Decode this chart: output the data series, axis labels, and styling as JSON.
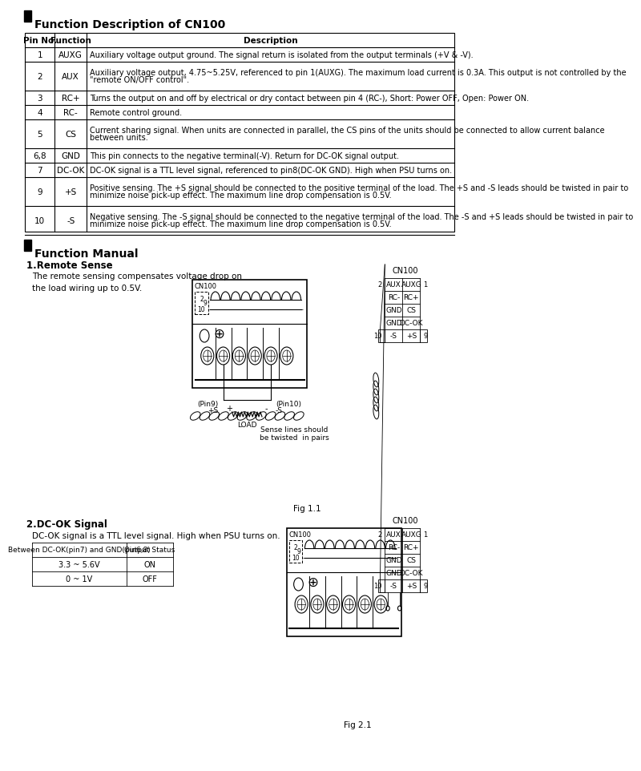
{
  "title1": "Function Description of CN100",
  "title2": "Function Manual",
  "bg_color": "#ffffff",
  "table_headers": [
    "Pin No.",
    "Function",
    "Description"
  ],
  "table_rows": [
    [
      "1",
      "AUXG",
      "Auxiliary voltage output ground. The signal return is isolated from the output terminals (+V & -V)."
    ],
    [
      "2",
      "AUX",
      "Auxiliary voltage output, 4.75~5.25V, referenced to pin 1(AUXG). The maximum load current is 0.3A. This output is not controlled by the\n\"remote ON/OFF control\"."
    ],
    [
      "3",
      "RC+",
      "Turns the output on and off by electrical or dry contact between pin 4 (RC-), Short: Power OFF, Open: Power ON."
    ],
    [
      "4",
      "RC-",
      "Remote control ground."
    ],
    [
      "5",
      "CS",
      "Current sharing signal. When units are connected in parallel, the CS pins of the units should be connected to allow current balance\nbetween units."
    ],
    [
      "6,8",
      "GND",
      "This pin connects to the negative terminal(-V). Return for DC-OK signal output."
    ],
    [
      "7",
      "DC-OK",
      "DC-OK signal is a TTL level signal, referenced to pin8(DC-OK GND). High when PSU turns on."
    ],
    [
      "9",
      "+S",
      "Positive sensing. The +S signal should be connected to the positive terminal of the load. The +S and -S leads should be twisted in pair to\nminimize noise pick-up effect. The maximum line drop compensation is 0.5V."
    ],
    [
      "10",
      "-S",
      "Negative sensing. The -S signal should be connected to the negative terminal of the load. The -S and +S leads should be twisted in pair to\nminimize noise pick-up effect. The maximum line drop compensation is 0.5V."
    ]
  ],
  "section1_title": "1.Remote Sense",
  "section1_desc": "The remote sensing compensates voltage drop on\nthe load wiring up to 0.5V.",
  "fig1_label": "Fig 1.1",
  "section2_title": "2.DC-OK Signal",
  "section2_desc": "DC-OK signal is a TTL level signal. High when PSU turns on.",
  "dc_ok_table_headers": [
    "Between DC-OK(pin7) and GND(pin6,8)",
    "Output Status"
  ],
  "dc_ok_table_rows": [
    [
      "3.3 ~ 5.6V",
      "ON"
    ],
    [
      "0 ~ 1V",
      "OFF"
    ]
  ],
  "fig2_label": "Fig 2.1",
  "cn100_pinout": [
    "AUX",
    "AUXG",
    "RC-",
    "RC+",
    "GND",
    "CS",
    "GND",
    "DC-OK",
    "-S",
    "+S"
  ],
  "cn100_nums_left": [
    "2",
    "10"
  ],
  "cn100_nums_right": [
    "1",
    "9"
  ]
}
